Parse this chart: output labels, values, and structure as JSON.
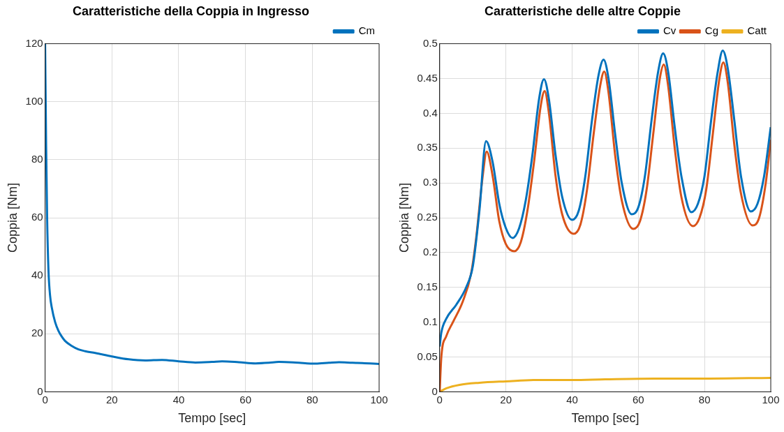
{
  "chart_data": [
    {
      "type": "line",
      "title": "Caratteristiche della Coppia in Ingresso",
      "xlabel": "Tempo [sec]",
      "ylabel": "Coppia [Nm]",
      "xlim": [
        0,
        100
      ],
      "xticks": [
        0,
        20,
        40,
        60,
        80,
        100
      ],
      "ylim": [
        0,
        120
      ],
      "yticks": [
        0,
        20,
        40,
        60,
        80,
        100,
        120
      ],
      "grid": true,
      "legend": "top right",
      "line_style": "solid",
      "marker": "none",
      "series": [
        {
          "name": "Cm",
          "color": "#0072bd",
          "x": [
            0,
            0.3,
            0.6,
            1,
            1.5,
            2,
            3,
            4,
            5,
            6,
            8,
            10,
            12,
            15,
            20,
            25,
            30,
            35,
            40,
            45,
            50,
            53,
            58,
            63,
            67,
            70,
            75,
            81,
            85,
            88,
            92,
            95,
            100
          ],
          "values": [
            120,
            85,
            60,
            42,
            33,
            29,
            24,
            21,
            19,
            17.5,
            15.8,
            14.6,
            14,
            13.4,
            12.2,
            11.2,
            10.8,
            11,
            10.5,
            10.1,
            10.3,
            10.5,
            10.2,
            9.8,
            10,
            10.3,
            10.1,
            9.7,
            10,
            10.2,
            10,
            9.9,
            9.6
          ]
        }
      ]
    },
    {
      "type": "line",
      "title": "Caratteristiche delle altre Coppie",
      "xlabel": "Tempo [sec]",
      "ylabel": "Coppia [Nm]",
      "xlim": [
        0,
        100
      ],
      "xticks": [
        0,
        20,
        40,
        60,
        80,
        100
      ],
      "ylim": [
        0,
        0.5
      ],
      "yticks": [
        0,
        0.05,
        0.1,
        0.15,
        0.2,
        0.25,
        0.3,
        0.35,
        0.4,
        0.45,
        0.5
      ],
      "grid": true,
      "legend": "top right",
      "line_style": "solid",
      "marker": "none",
      "series": [
        {
          "name": "Cv",
          "color": "#0072bd",
          "x": [
            0,
            0.5,
            2,
            5,
            8,
            10,
            12,
            14,
            16,
            18,
            20,
            22,
            24,
            26,
            28,
            30,
            31.5,
            33,
            35,
            37,
            40,
            42,
            44,
            46,
            48,
            49.5,
            51,
            53,
            55,
            58,
            60,
            62,
            64,
            66,
            67.5,
            69,
            71,
            73,
            76,
            78,
            80,
            82,
            84,
            85.5,
            87,
            89,
            91,
            94,
            96,
            98,
            100
          ],
          "values": [
            0.065,
            0.085,
            0.105,
            0.125,
            0.15,
            0.18,
            0.26,
            0.36,
            0.33,
            0.27,
            0.235,
            0.221,
            0.235,
            0.275,
            0.34,
            0.42,
            0.449,
            0.42,
            0.34,
            0.28,
            0.247,
            0.26,
            0.31,
            0.39,
            0.455,
            0.477,
            0.45,
            0.37,
            0.3,
            0.255,
            0.265,
            0.31,
            0.39,
            0.46,
            0.486,
            0.46,
            0.38,
            0.31,
            0.258,
            0.27,
            0.31,
            0.39,
            0.46,
            0.49,
            0.465,
            0.39,
            0.31,
            0.259,
            0.27,
            0.31,
            0.38
          ]
        },
        {
          "name": "Cg",
          "color": "#d95319",
          "x": [
            0,
            0.5,
            2,
            4,
            7,
            9.5,
            11,
            13,
            14.2,
            16,
            18,
            20,
            22.5,
            24.5,
            26.5,
            28.5,
            30.5,
            31.7,
            33,
            35,
            37,
            40.5,
            42.5,
            44.5,
            46.5,
            48.5,
            49.7,
            51,
            53,
            55,
            58.5,
            60.5,
            62.5,
            64.5,
            66.5,
            67.7,
            69,
            71,
            73,
            76.5,
            78.5,
            80.5,
            82.5,
            84.5,
            85.7,
            87,
            89,
            91,
            94.5,
            96.5,
            98.5,
            100
          ],
          "values": [
            0,
            0.05,
            0.08,
            0.1,
            0.13,
            0.17,
            0.22,
            0.31,
            0.345,
            0.31,
            0.245,
            0.212,
            0.202,
            0.215,
            0.26,
            0.33,
            0.41,
            0.432,
            0.4,
            0.31,
            0.255,
            0.227,
            0.24,
            0.29,
            0.37,
            0.44,
            0.46,
            0.43,
            0.34,
            0.275,
            0.234,
            0.245,
            0.29,
            0.37,
            0.45,
            0.47,
            0.44,
            0.35,
            0.28,
            0.238,
            0.25,
            0.29,
            0.37,
            0.45,
            0.473,
            0.445,
            0.355,
            0.285,
            0.239,
            0.25,
            0.3,
            0.362
          ]
        },
        {
          "name": "Catt",
          "color": "#edb120",
          "x": [
            0,
            2,
            6,
            12,
            20,
            30,
            40,
            50,
            65,
            80,
            100
          ],
          "values": [
            0,
            0.005,
            0.01,
            0.013,
            0.015,
            0.017,
            0.017,
            0.018,
            0.019,
            0.019,
            0.02
          ]
        }
      ]
    }
  ]
}
